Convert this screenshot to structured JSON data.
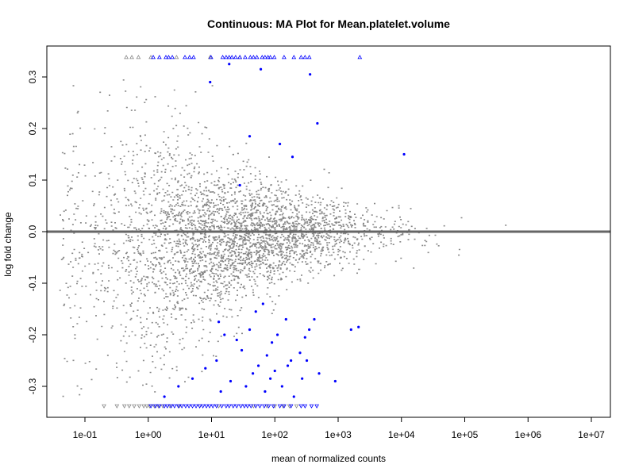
{
  "chart_data": {
    "type": "scatter",
    "title": "Continuous: MA Plot for Mean.platelet.volume",
    "xlabel": "mean of normalized counts",
    "ylabel": "log fold change",
    "x_scale": "log10",
    "xlim": [
      0.025,
      20000000
    ],
    "ylim": [
      -0.36,
      0.36
    ],
    "x_ticks": [
      {
        "value": 0.1,
        "label": "1e-01"
      },
      {
        "value": 1,
        "label": "1e+00"
      },
      {
        "value": 10,
        "label": "1e+01"
      },
      {
        "value": 100,
        "label": "1e+02"
      },
      {
        "value": 1000,
        "label": "1e+03"
      },
      {
        "value": 10000,
        "label": "1e+04"
      },
      {
        "value": 100000,
        "label": "1e+05"
      },
      {
        "value": 1000000,
        "label": "1e+06"
      },
      {
        "value": 10000000,
        "label": "1e+07"
      }
    ],
    "y_ticks": [
      {
        "value": -0.3,
        "label": "-0.3"
      },
      {
        "value": -0.2,
        "label": "-0.2"
      },
      {
        "value": -0.1,
        "label": "-0.1"
      },
      {
        "value": 0.0,
        "label": "0.0"
      },
      {
        "value": 0.1,
        "label": "0.1"
      },
      {
        "value": 0.2,
        "label": "0.2"
      },
      {
        "value": 0.3,
        "label": "0.3"
      }
    ],
    "reference_line": {
      "y": 0,
      "color": "#666666"
    },
    "colors": {
      "not_significant": "#888888",
      "significant": "#0000ff",
      "reference": "#666666"
    },
    "clipped_value_top": 0.338,
    "clipped_value_bottom": -0.338,
    "series": [
      {
        "color": "#0000ff",
        "points": [
          [
            9.5,
            0.29
          ],
          [
            19,
            0.325
          ],
          [
            60,
            0.315
          ],
          [
            360,
            0.305
          ],
          [
            120,
            0.17
          ],
          [
            190,
            0.145
          ],
          [
            11000,
            0.15
          ],
          [
            470,
            0.21
          ],
          [
            40,
            0.185
          ],
          [
            28,
            0.09
          ],
          [
            13,
            -0.175
          ],
          [
            16,
            -0.2
          ],
          [
            25,
            -0.21
          ],
          [
            30,
            -0.23
          ],
          [
            40,
            -0.19
          ],
          [
            50,
            -0.155
          ],
          [
            65,
            -0.14
          ],
          [
            75,
            -0.24
          ],
          [
            90,
            -0.215
          ],
          [
            110,
            -0.2
          ],
          [
            150,
            -0.17
          ],
          [
            180,
            -0.25
          ],
          [
            250,
            -0.235
          ],
          [
            300,
            -0.205
          ],
          [
            350,
            -0.19
          ],
          [
            420,
            -0.17
          ],
          [
            500,
            -0.275
          ],
          [
            900,
            -0.29
          ],
          [
            1600,
            -0.19
          ],
          [
            2100,
            -0.185
          ],
          [
            1.8,
            -0.32
          ],
          [
            3,
            -0.3
          ],
          [
            5,
            -0.285
          ],
          [
            8,
            -0.265
          ],
          [
            12,
            -0.25
          ],
          [
            14,
            -0.31
          ],
          [
            20,
            -0.29
          ],
          [
            35,
            -0.3
          ],
          [
            45,
            -0.275
          ],
          [
            55,
            -0.26
          ],
          [
            70,
            -0.31
          ],
          [
            85,
            -0.285
          ],
          [
            100,
            -0.27
          ],
          [
            130,
            -0.3
          ],
          [
            160,
            -0.26
          ],
          [
            200,
            -0.32
          ],
          [
            270,
            -0.285
          ],
          [
            320,
            -0.25
          ]
        ]
      }
    ],
    "clipped_points": {
      "top_gray": [
        0.45,
        0.55,
        0.7,
        1.1,
        2.8,
        9.5,
        28
      ],
      "top_blue": [
        1.2,
        1.5,
        1.9,
        2.1,
        2.4,
        3.8,
        4.5,
        5.2,
        9.8,
        15,
        17,
        19,
        21,
        24,
        28,
        34,
        41,
        46,
        52,
        63,
        70,
        78,
        85,
        98,
        140,
        200,
        260,
        300,
        350,
        2200
      ],
      "bottom_gray": [
        0.2,
        0.32,
        0.42,
        0.5,
        0.6,
        0.72,
        0.85,
        0.95,
        1.05,
        1.25,
        1.45,
        1.7,
        2.2,
        3.1,
        6.5,
        13,
        46,
        75,
        100,
        135,
        170,
        220
      ],
      "bottom_blue": [
        1.1,
        1.3,
        1.5,
        1.8,
        2.0,
        2.3,
        2.6,
        3.0,
        3.4,
        3.9,
        4.4,
        5.0,
        5.7,
        6.5,
        7.3,
        8.3,
        9.3,
        10.5,
        12,
        14.5,
        17,
        19,
        22,
        25,
        29,
        33,
        37,
        42,
        50,
        58,
        68,
        80,
        95,
        120,
        140,
        180,
        260,
        300,
        380,
        460
      ]
    }
  }
}
